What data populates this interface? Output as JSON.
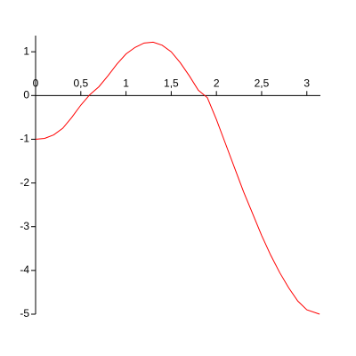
{
  "chart_data": {
    "type": "line",
    "x": [
      0,
      0.1,
      0.2,
      0.3,
      0.4,
      0.5,
      0.6,
      0.7,
      0.8,
      0.9,
      1.0,
      1.1,
      1.2,
      1.3,
      1.4,
      1.5,
      1.6,
      1.7,
      1.8,
      1.9,
      2.0,
      2.1,
      2.2,
      2.3,
      2.4,
      2.5,
      2.6,
      2.7,
      2.8,
      2.9,
      3.0,
      3.1416
    ],
    "series": [
      {
        "color": "#ff0000",
        "values": [
          -1,
          -0.98,
          -0.9,
          -0.75,
          -0.5,
          -0.22,
          0.02,
          0.2,
          0.45,
          0.72,
          0.95,
          1.1,
          1.2,
          1.22,
          1.15,
          1.0,
          0.75,
          0.45,
          0.12,
          -0.05,
          -0.55,
          -1.1,
          -1.65,
          -2.2,
          -2.7,
          -3.2,
          -3.65,
          -4.05,
          -4.4,
          -4.7,
          -4.9,
          -5
        ]
      }
    ],
    "xlim": [
      0,
      3.15
    ],
    "ylim": [
      -5,
      1.37
    ],
    "xticks": [
      0,
      {
        "value": 0.5,
        "label": "0,5"
      },
      1,
      {
        "value": 1.5,
        "label": "1,5"
      },
      2,
      {
        "value": 2.5,
        "label": "2,5"
      },
      3
    ],
    "yticks": [
      1,
      0,
      -1,
      -2,
      -3,
      -4,
      -5
    ]
  }
}
